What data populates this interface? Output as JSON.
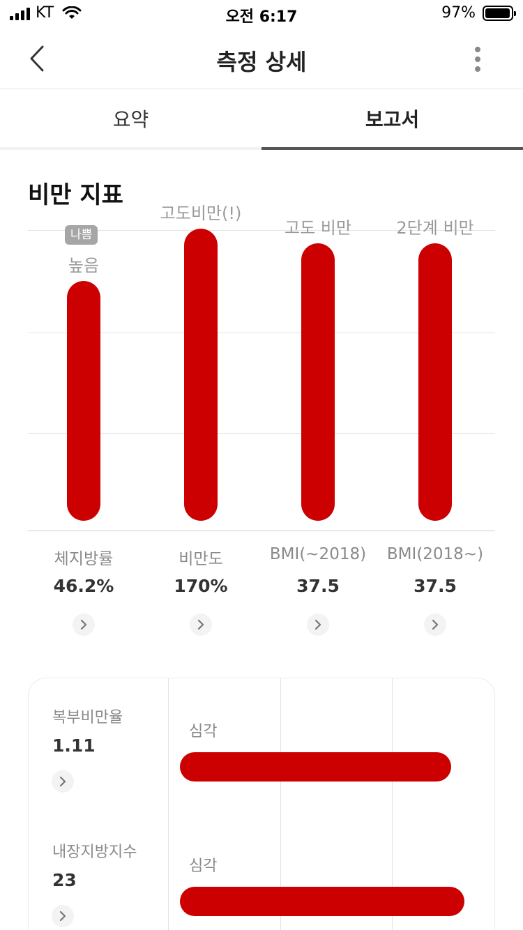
{
  "status_bar": {
    "carrier": "KT",
    "time": "오전 6:17",
    "battery": "97%",
    "battery_level": 0.97
  },
  "nav": {
    "title": "측정 상세",
    "back_icon": "chevron-left-icon",
    "more_icon": "more-vertical-icon"
  },
  "tabs": [
    {
      "label": "요약",
      "selected": false
    },
    {
      "label": "보고서",
      "selected": true
    }
  ],
  "section": {
    "title": "비만 지표"
  },
  "colors": {
    "bar": "#cc0000",
    "badge": "#a6a6a6",
    "muted_text": "#8a8a8a"
  },
  "chart_data": {
    "type": "bar",
    "categories": [
      "체지방률",
      "비만도",
      "BMI(~2018)",
      "BMI(2018~)"
    ],
    "values": [
      "46.2%",
      "170%",
      "37.5",
      "37.5"
    ],
    "levels": [
      "높음",
      "고도비만(!)",
      "고도 비만",
      "2단계 비만"
    ],
    "level_ratio": [
      0.82,
      1.0,
      0.95,
      0.95
    ],
    "badge": "나쁨",
    "grid": true
  },
  "metrics_card": {
    "rows": [
      {
        "label": "복부비만율",
        "value": "1.11",
        "status": "심각",
        "level": 0.81
      },
      {
        "label": "내장지방지수",
        "value": "23",
        "status": "심각",
        "level": 0.85
      }
    ]
  }
}
